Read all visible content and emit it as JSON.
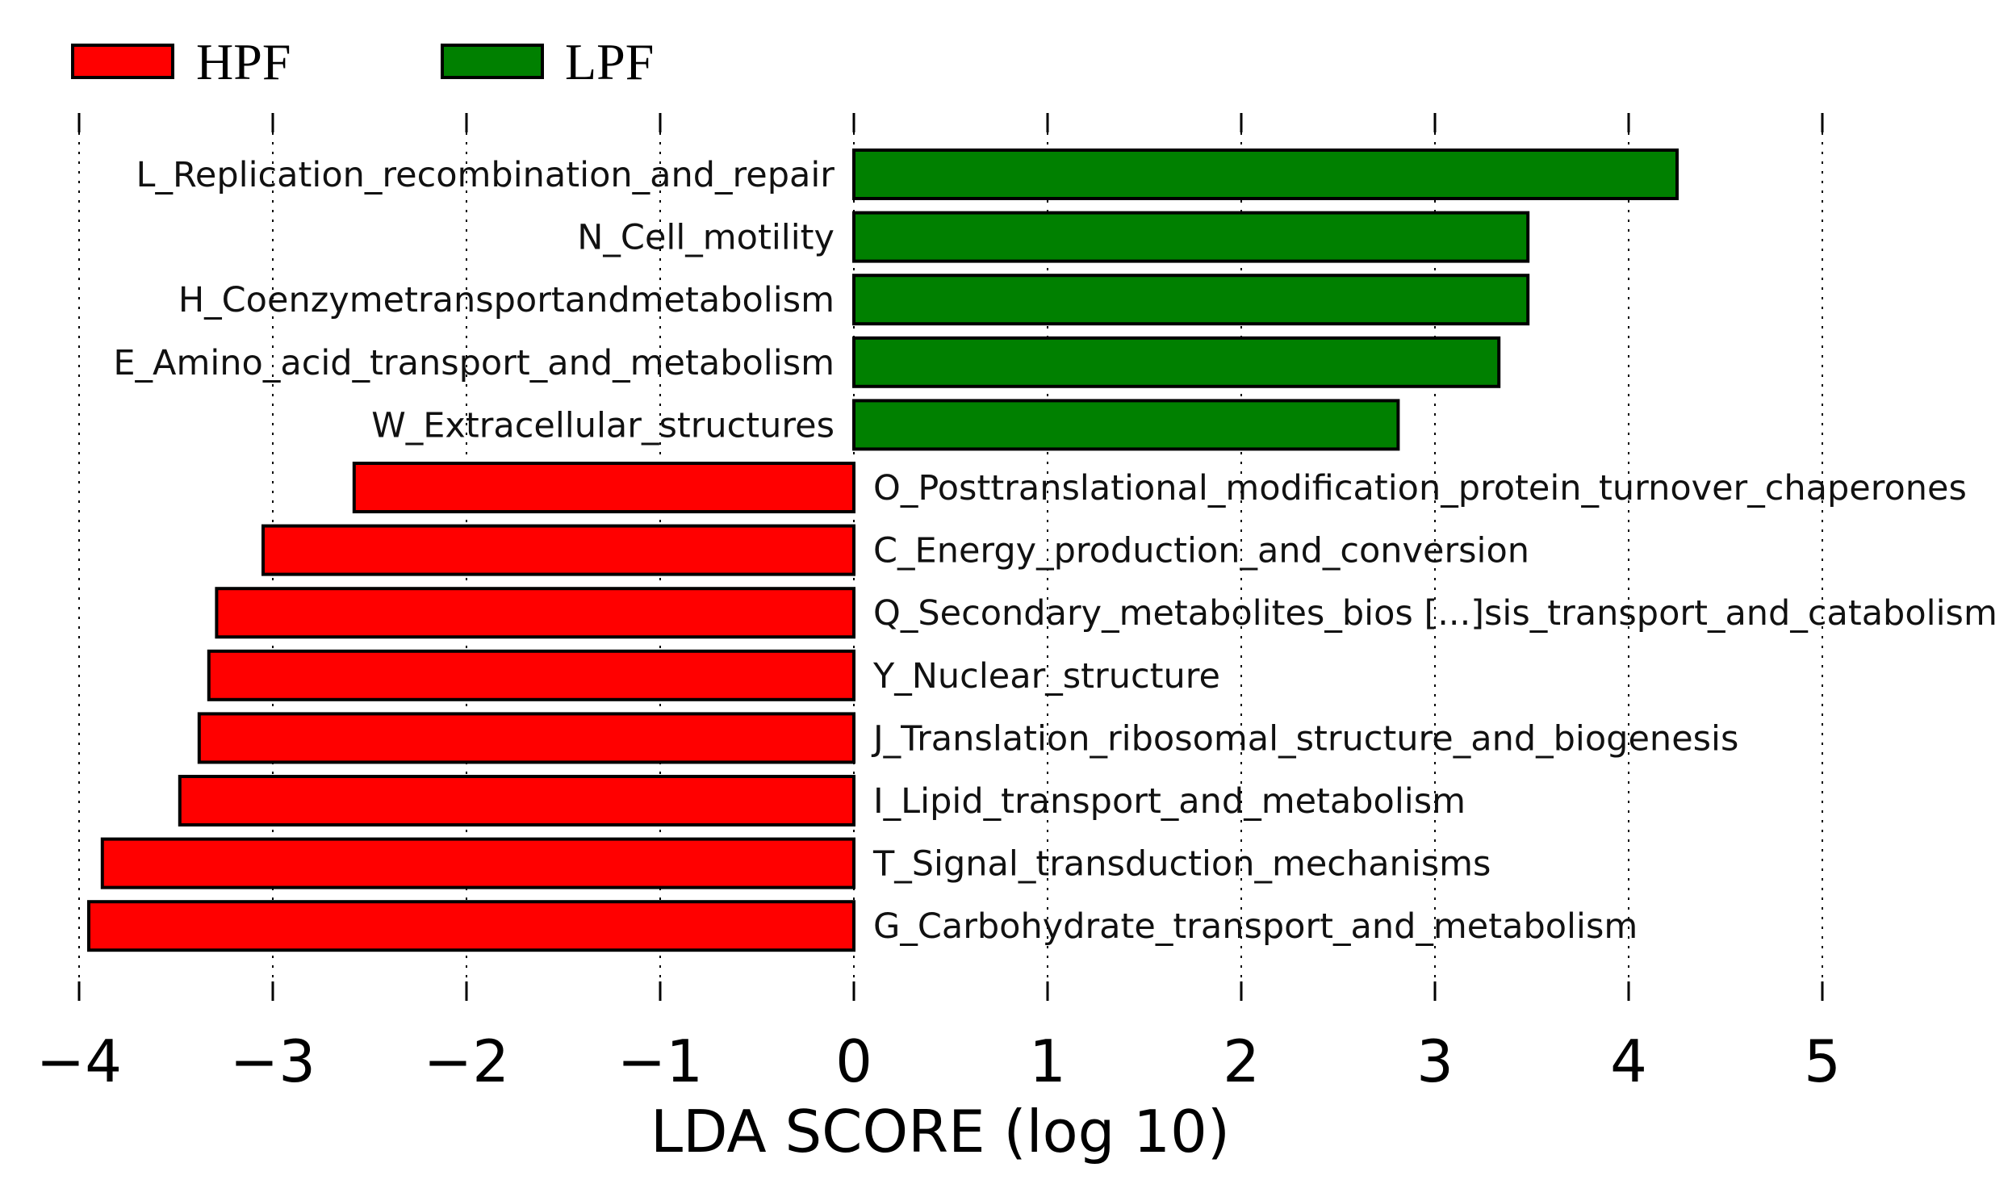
{
  "chart_data": {
    "type": "bar",
    "orientation": "horizontal",
    "title": "",
    "xlabel": "LDA SCORE (log 10)",
    "ylabel": "",
    "xlim": [
      -4,
      5
    ],
    "xticks": [
      -4,
      -3,
      -2,
      -1,
      0,
      1,
      2,
      3,
      4,
      5
    ],
    "xtick_labels": [
      "−4",
      "−3",
      "−2",
      "−1",
      "0",
      "1",
      "2",
      "3",
      "4",
      "5"
    ],
    "grid": true,
    "legend_position": "top-left",
    "legend": [
      {
        "name": "HPF",
        "color": "#ff0000"
      },
      {
        "name": "LPF",
        "color": "#008000"
      }
    ],
    "categories": [
      "L_Replication_recombination_and_repair",
      "N_Cell_motility",
      "H_Coenzymetransportandmetabolism",
      "E_Amino_acid_transport_and_metabolism",
      "W_Extracellular_structures",
      "O_Posttranslational_modification_protein_turnover_chaperones",
      "C_Energy_production_and_conversion",
      "Q_Secondary_metabolites_bios [...]sis_transport_and_catabolism",
      "Y_Nuclear_structure",
      "J_Translation_ribosomal_structure_and_biogenesis",
      "I_Lipid_transport_and_metabolism",
      "T_Signal_transduction_mechanisms",
      "G_Carbohydrate_transport_and_metabolism"
    ],
    "values": [
      4.25,
      3.48,
      3.48,
      3.33,
      2.81,
      -2.58,
      -3.05,
      -3.29,
      -3.33,
      -3.38,
      -3.48,
      -3.88,
      -3.95
    ],
    "groups": [
      "LPF",
      "LPF",
      "LPF",
      "LPF",
      "LPF",
      "HPF",
      "HPF",
      "HPF",
      "HPF",
      "HPF",
      "HPF",
      "HPF",
      "HPF"
    ]
  }
}
